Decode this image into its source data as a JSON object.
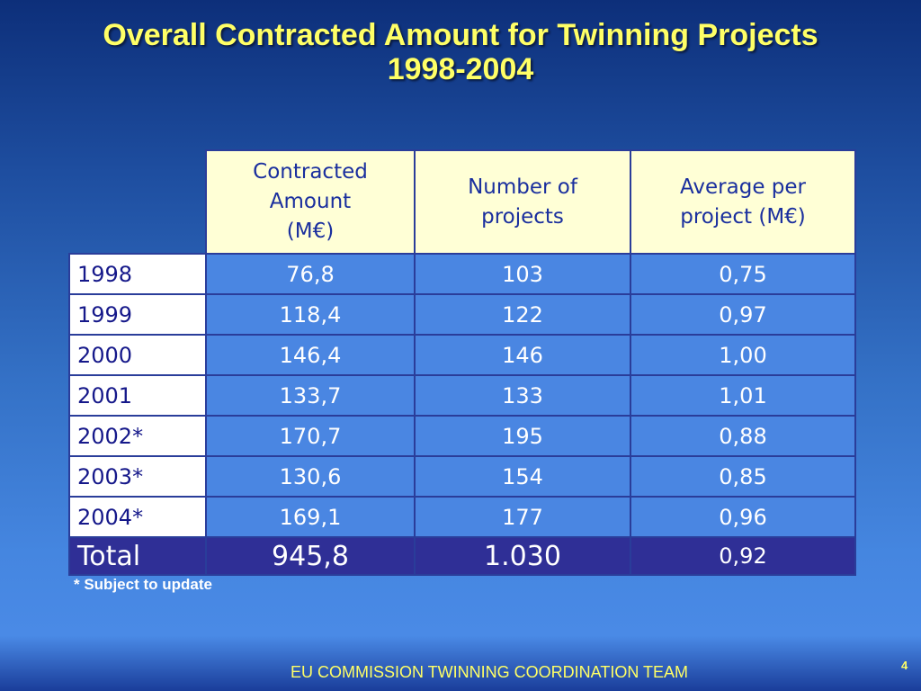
{
  "slide": {
    "title_line1": "Overall Contracted Amount for Twinning Projects",
    "title_line2": "1998-2004",
    "footnote": "* Subject to update",
    "footer": "EU COMMISSION TWINNING COORDINATION TEAM",
    "page_number": "4"
  },
  "table": {
    "headers": {
      "col1": [
        "Contracted",
        "Amount",
        "(M€)"
      ],
      "col2": [
        "Number of",
        "projects"
      ],
      "col3": [
        "Average per",
        "project (M€)"
      ]
    },
    "rows": [
      {
        "year": "1998",
        "amount": "76,8",
        "projects": "103",
        "average": "0,75"
      },
      {
        "year": "1999",
        "amount": "118,4",
        "projects": "122",
        "average": "0,97"
      },
      {
        "year": "2000",
        "amount": "146,4",
        "projects": "146",
        "average": "1,00"
      },
      {
        "year": "2001",
        "amount": "133,7",
        "projects": "133",
        "average": "1,01"
      },
      {
        "year": "2002*",
        "amount": "170,7",
        "projects": "195",
        "average": "0,88"
      },
      {
        "year": "2003*",
        "amount": "130,6",
        "projects": "154",
        "average": "0,85"
      },
      {
        "year": "2004*",
        "amount": "169,1",
        "projects": "177",
        "average": "0,96"
      }
    ],
    "total": {
      "label": "Total",
      "amount": "945,8",
      "projects": "1.030",
      "average": "0,92"
    }
  }
}
